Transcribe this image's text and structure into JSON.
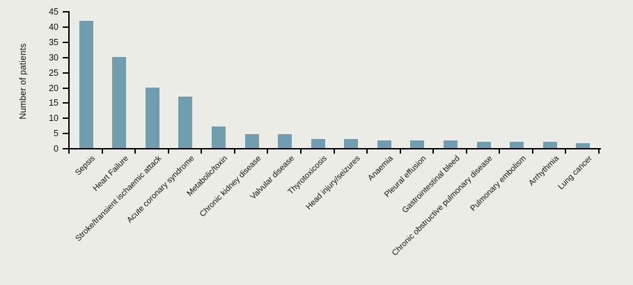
{
  "figure": {
    "background_color": "#ecece6"
  },
  "chart_data": {
    "type": "bar",
    "title": "",
    "xlabel": "",
    "ylabel": "Number of patients",
    "ylim": [
      0,
      45
    ],
    "ytick_step": 5,
    "yticks": [
      0,
      5,
      10,
      15,
      20,
      25,
      30,
      35,
      40,
      45
    ],
    "grid": false,
    "legend": null,
    "bar_color": "#719eaf",
    "axis_color": "#000000",
    "text_color": "#111111",
    "categories": [
      "Sepsis",
      "Heart Failure",
      "Stroke/transient ischaemic attack",
      "Acute coronary syndrome",
      "Metabolic/toxin",
      "Chronic kidney disease",
      "Valvular disease",
      "Thyrotoxicosis",
      "Head injury/seizures",
      "Anaemia",
      "Pleural effusion",
      "Gastrointestinal bleed",
      "Chronic obstructive pulmonary disease",
      "Pulmonary embolism",
      "Arrhythmia",
      "Lung cancer"
    ],
    "values": [
      42,
      30,
      20,
      17,
      7,
      4.5,
      4.5,
      3,
      3,
      2.5,
      2.5,
      2.5,
      2,
      2,
      2,
      1.5
    ]
  }
}
